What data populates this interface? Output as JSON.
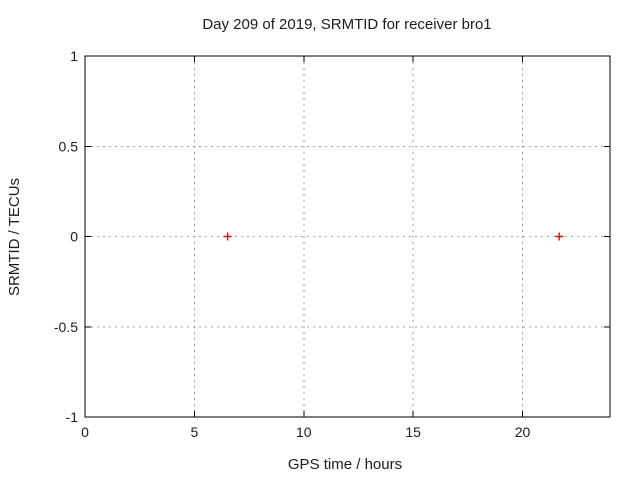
{
  "window": {
    "background": "#ffffff"
  },
  "chart_data": {
    "type": "scatter",
    "title": "Day 209 of 2019, SRMTID for receiver bro1",
    "xlabel": "GPS time / hours",
    "ylabel": "SRMTID / TECUs",
    "xlim": [
      0,
      24
    ],
    "ylim": [
      -1,
      1
    ],
    "x_ticks": [
      0,
      5,
      10,
      15,
      20
    ],
    "y_ticks": [
      -1,
      -0.5,
      0,
      0.5,
      1
    ],
    "grid": true,
    "legend": "none",
    "series": [
      {
        "name": "SRMTID",
        "marker": "plus",
        "color": "#ff0000",
        "points": [
          {
            "x": 6.52,
            "y": 0
          },
          {
            "x": 21.68,
            "y": 0
          }
        ]
      }
    ],
    "style": {
      "border_color": "#000000",
      "grid_color": "#a0a0a0",
      "grid_dash": "2,4",
      "tick_length": 6,
      "text_color": "#1c1c1c"
    }
  }
}
